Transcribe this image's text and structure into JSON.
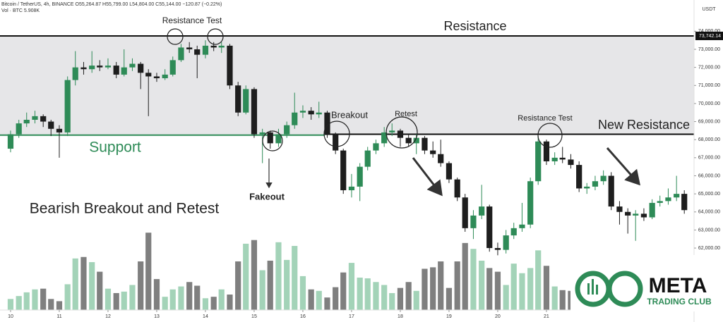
{
  "chart_data": {
    "type": "candlestick",
    "header": "Bitcoin / TetherUS, 4h, BINANCE  O55,264.87  H55,799.00  L54,804.00  C55,144.00  −120.87 (−0.22%)",
    "volume_label": "Vol · BTC  5.908K",
    "currency": "USDT",
    "annotations": {
      "resistance_test_1": "Resistance Test",
      "resistance": "Resistance",
      "support": "Support",
      "breakout": "Breakout",
      "retest": "Retest",
      "resistance_test_2": "Resistance Test",
      "new_resistance": "New Resistance",
      "fakeout": "Fakeout",
      "headline": "Bearish Breakout and Retest"
    },
    "logo": {
      "name": "META",
      "subtitle": "TRADING CLUB"
    },
    "last_price": {
      "value": 73742.14,
      "label": "73,742.14"
    },
    "support_level": 68250,
    "new_resistance_level": 68300,
    "colors": {
      "up": "#2e8b57",
      "down": "#1e1e1e",
      "volume_up": "#a3d3b8",
      "volume_down": "#7f7f7f",
      "zone": "#e6e6e8"
    },
    "x": [
      10,
      10.17,
      10.33,
      10.5,
      10.67,
      10.83,
      11,
      11.17,
      11.33,
      11.5,
      11.67,
      11.83,
      12,
      12.17,
      12.33,
      12.5,
      12.67,
      12.83,
      13,
      13.17,
      13.33,
      13.5,
      13.67,
      13.83,
      14,
      14.17,
      14.33,
      14.5,
      14.67,
      14.83,
      15,
      15.17,
      15.33,
      15.5,
      15.67,
      15.83,
      16,
      16.17,
      16.33,
      16.5,
      16.67,
      16.83,
      17,
      17.17,
      17.33,
      17.5,
      17.67,
      17.83,
      18,
      18.17,
      18.33,
      18.5,
      18.67,
      18.83,
      19,
      19.17,
      19.33,
      19.5,
      19.67,
      19.83,
      20,
      20.17,
      20.33,
      20.5,
      20.67,
      20.83,
      21,
      21.17,
      21.33,
      21.5,
      21.67,
      21.83,
      22,
      22.17,
      22.33,
      22.5,
      22.67,
      22.83,
      23,
      23.17,
      23.33,
      23.5,
      23.67,
      23.83
    ],
    "open": [
      67500,
      68300,
      68900,
      69100,
      69300,
      69000,
      68600,
      68400,
      71300,
      72000,
      71900,
      72100,
      72000,
      72100,
      71600,
      72000,
      72200,
      71700,
      71500,
      71400,
      71600,
      72400,
      73100,
      73000,
      72700,
      73200,
      73100,
      73200,
      71000,
      69500,
      70800,
      68300,
      68400,
      67800,
      68300,
      68800,
      69500,
      69600,
      69400,
      69500,
      68300,
      67400,
      65200,
      65400,
      66500,
      67400,
      67800,
      68400,
      68500,
      68100,
      67800,
      68100,
      67400,
      67200,
      66700,
      65800,
      64800,
      63100,
      63800,
      64300,
      62000,
      61900,
      62700,
      63100,
      63300,
      65700,
      67900,
      66800,
      67000,
      66900,
      66600,
      65300,
      65400,
      65700,
      66000,
      64300,
      64000,
      63800,
      63900,
      63700,
      64500,
      64600,
      64800,
      65000
    ],
    "high": [
      68500,
      69100,
      69500,
      69600,
      69400,
      69100,
      68800,
      71500,
      72900,
      72300,
      72900,
      72400,
      72500,
      72300,
      73000,
      72500,
      72300,
      71900,
      71700,
      71900,
      72600,
      73300,
      73400,
      73200,
      73500,
      73400,
      73400,
      73300,
      71200,
      71000,
      70900,
      68600,
      68500,
      68600,
      69000,
      70600,
      69900,
      69800,
      70100,
      69600,
      68400,
      67500,
      66100,
      66700,
      67600,
      68000,
      68700,
      68900,
      68600,
      68300,
      68300,
      68200,
      67900,
      68000,
      66800,
      65900,
      65000,
      64100,
      65500,
      64400,
      62300,
      63000,
      63400,
      64500,
      65900,
      68200,
      68000,
      67300,
      67600,
      67200,
      66800,
      65600,
      66000,
      66300,
      66200,
      64600,
      64200,
      64100,
      64200,
      64700,
      64900,
      65300,
      66000,
      65200
    ],
    "low": [
      67300,
      68100,
      68700,
      68900,
      68700,
      68200,
      67000,
      68200,
      71000,
      71600,
      71700,
      71800,
      71900,
      71400,
      71500,
      71800,
      70800,
      69300,
      71200,
      71300,
      71500,
      72300,
      72800,
      71400,
      72500,
      72900,
      72800,
      70800,
      69300,
      69400,
      68100,
      66700,
      67500,
      67600,
      68100,
      68600,
      69200,
      69100,
      69200,
      68100,
      67200,
      65000,
      64800,
      64600,
      66300,
      67200,
      67600,
      68200,
      67600,
      67600,
      67200,
      67200,
      67000,
      66500,
      65600,
      64600,
      62900,
      62500,
      63600,
      61800,
      61600,
      61700,
      62500,
      62900,
      63100,
      65500,
      66600,
      66600,
      66700,
      66400,
      65100,
      65000,
      65200,
      65500,
      64100,
      63300,
      62800,
      62400,
      63500,
      63600,
      64300,
      64400,
      64600,
      63900
    ],
    "close": [
      68300,
      68900,
      69100,
      69300,
      69000,
      68600,
      68400,
      71300,
      72000,
      71900,
      72100,
      72000,
      72100,
      71600,
      72000,
      72200,
      71700,
      71500,
      71400,
      71600,
      72400,
      73100,
      73000,
      72700,
      73200,
      73100,
      73200,
      71000,
      69500,
      70800,
      68300,
      68400,
      67800,
      68300,
      68800,
      69500,
      69600,
      69400,
      69500,
      68300,
      67400,
      65200,
      65400,
      66500,
      67400,
      67800,
      68400,
      68500,
      68100,
      67800,
      68100,
      67400,
      67200,
      66700,
      65800,
      64800,
      63100,
      63800,
      64300,
      62000,
      61900,
      62700,
      63100,
      63300,
      65700,
      67900,
      66800,
      67000,
      66900,
      66600,
      65300,
      65400,
      65700,
      66000,
      64300,
      64000,
      63800,
      63900,
      63700,
      64500,
      64600,
      64800,
      65000,
      64100
    ],
    "volume": [
      1500,
      1900,
      2400,
      2800,
      2900,
      1500,
      1200,
      3500,
      7000,
      7200,
      6500,
      5200,
      2900,
      2300,
      2500,
      3400,
      6600,
      10500,
      4200,
      1800,
      2800,
      3200,
      3800,
      3300,
      1600,
      1800,
      2800,
      2100,
      6600,
      9000,
      9500,
      5400,
      6700,
      9200,
      6800,
      8700,
      4600,
      2800,
      2600,
      1700,
      3100,
      5100,
      6400,
      4400,
      4300,
      3800,
      3400,
      2300,
      3000,
      3800,
      2600,
      5600,
      5800,
      6600,
      3000,
      6600,
      9100,
      8300,
      6700,
      5700,
      5200,
      3400,
      6300,
      5000,
      5700,
      8100,
      6000,
      3200,
      2700,
      2600,
      2300,
      2400,
      2000,
      2500,
      2700,
      2300,
      2100,
      2500,
      2600,
      2000,
      2200,
      2400,
      2300,
      2000
    ],
    "vlim": [
      0,
      11000
    ],
    "xlim": [
      9.783,
      24.03
    ],
    "xticks": [
      10,
      11,
      12,
      13,
      14,
      15,
      16,
      17,
      18,
      19,
      20,
      21
    ],
    "ylim": [
      58570,
      74950
    ],
    "yticks": [
      {
        "value": 62000,
        "label": "62,000.00"
      },
      {
        "value": 63000,
        "label": "63,000.00"
      },
      {
        "value": 64000,
        "label": "64,000.00"
      },
      {
        "value": 65000,
        "label": "65,000.00"
      },
      {
        "value": 66000,
        "label": "66,000.00"
      },
      {
        "value": 67000,
        "label": "67,000.00"
      },
      {
        "value": 68000,
        "label": "68,000.00"
      },
      {
        "value": 69000,
        "label": "69,000.00"
      },
      {
        "value": 70000,
        "label": "70,000.00"
      },
      {
        "value": 71000,
        "label": "71,000.00"
      },
      {
        "value": 72000,
        "label": "72,000.00"
      },
      {
        "value": 73000,
        "label": "73,000.00"
      },
      {
        "value": 74000,
        "label": "74,000.00"
      }
    ]
  }
}
